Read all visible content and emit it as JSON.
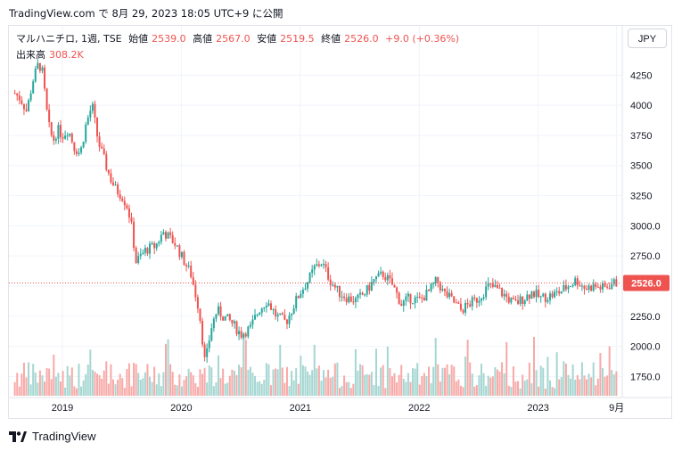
{
  "header": {
    "text": "TradingView.com で 8月 29, 2023 18:05 UTC+9 に公開"
  },
  "legend": {
    "symbol": "マルハニチロ, 1週, TSE",
    "open_label": "始値",
    "open": "2539.0",
    "high_label": "高値",
    "high": "2567.0",
    "low_label": "安値",
    "low": "2519.5",
    "close_label": "終値",
    "close": "2526.0",
    "change": "+9.0 (+0.36%)",
    "volume_label": "出来高",
    "volume": "308.2K"
  },
  "currency_button": "JPY",
  "footer": {
    "brand": "TradingView"
  },
  "colors": {
    "up": "#26a69a",
    "down": "#ef5350",
    "vol_up": "#a5d6d1",
    "vol_down": "#f7a9a7",
    "grid": "#f0f3fa",
    "price_line": "#ef5350"
  },
  "chart_data": {
    "type": "candlestick",
    "x_ticks": [
      "2019",
      "2020",
      "2021",
      "2022",
      "2023",
      "9月"
    ],
    "y_ticks": [
      "4250",
      "4000",
      "3750",
      "3500",
      "3250",
      "3000.0",
      "2750.0",
      "2500.0",
      "2250.0",
      "2000.0",
      "1750.0"
    ],
    "y_tick_values": [
      4250,
      4000,
      3750,
      3500,
      3250,
      3000,
      2750,
      2500,
      2250,
      2000,
      1750
    ],
    "ylim": [
      1590,
      4430
    ],
    "last_price_label": "2526.0",
    "last_price": 2526,
    "series_close": [
      [
        2018.6,
        4100
      ],
      [
        2018.65,
        4050
      ],
      [
        2018.7,
        3950
      ],
      [
        2018.75,
        4200
      ],
      [
        2018.8,
        4350
      ],
      [
        2018.83,
        4280
      ],
      [
        2018.88,
        3850
      ],
      [
        2018.92,
        3700
      ],
      [
        2018.96,
        3800
      ],
      [
        2019.0,
        3750
      ],
      [
        2019.05,
        3800
      ],
      [
        2019.1,
        3650
      ],
      [
        2019.15,
        3600
      ],
      [
        2019.2,
        3850
      ],
      [
        2019.25,
        4000
      ],
      [
        2019.3,
        3700
      ],
      [
        2019.35,
        3550
      ],
      [
        2019.4,
        3400
      ],
      [
        2019.45,
        3300
      ],
      [
        2019.5,
        3250
      ],
      [
        2019.55,
        3150
      ],
      [
        2019.58,
        3000
      ],
      [
        2019.62,
        2700
      ],
      [
        2019.7,
        2800
      ],
      [
        2019.78,
        2830
      ],
      [
        2019.85,
        2950
      ],
      [
        2019.9,
        2900
      ],
      [
        2019.95,
        2850
      ],
      [
        2020.0,
        2750
      ],
      [
        2020.08,
        2600
      ],
      [
        2020.15,
        2300
      ],
      [
        2020.2,
        1850
      ],
      [
        2020.25,
        2150
      ],
      [
        2020.3,
        2300
      ],
      [
        2020.35,
        2250
      ],
      [
        2020.42,
        2200
      ],
      [
        2020.5,
        2100
      ],
      [
        2020.58,
        2150
      ],
      [
        2020.65,
        2300
      ],
      [
        2020.72,
        2380
      ],
      [
        2020.8,
        2250
      ],
      [
        2020.88,
        2200
      ],
      [
        2020.95,
        2350
      ],
      [
        2021.0,
        2450
      ],
      [
        2021.07,
        2550
      ],
      [
        2021.12,
        2650
      ],
      [
        2021.18,
        2700
      ],
      [
        2021.25,
        2550
      ],
      [
        2021.32,
        2450
      ],
      [
        2021.4,
        2400
      ],
      [
        2021.47,
        2380
      ],
      [
        2021.55,
        2450
      ],
      [
        2021.62,
        2550
      ],
      [
        2021.7,
        2600
      ],
      [
        2021.78,
        2500
      ],
      [
        2021.85,
        2350
      ],
      [
        2021.92,
        2400
      ],
      [
        2022.0,
        2380
      ],
      [
        2022.08,
        2450
      ],
      [
        2022.15,
        2550
      ],
      [
        2022.2,
        2450
      ],
      [
        2022.28,
        2380
      ],
      [
        2022.35,
        2300
      ],
      [
        2022.42,
        2350
      ],
      [
        2022.5,
        2400
      ],
      [
        2022.58,
        2500
      ],
      [
        2022.65,
        2480
      ],
      [
        2022.72,
        2420
      ],
      [
        2022.8,
        2350
      ],
      [
        2022.88,
        2400
      ],
      [
        2022.95,
        2450
      ],
      [
        2023.02,
        2400
      ],
      [
        2023.1,
        2420
      ],
      [
        2023.18,
        2450
      ],
      [
        2023.25,
        2500
      ],
      [
        2023.32,
        2550
      ],
      [
        2023.4,
        2480
      ],
      [
        2023.47,
        2500
      ],
      [
        2023.55,
        2480
      ],
      [
        2023.62,
        2520
      ],
      [
        2023.66,
        2526
      ]
    ]
  }
}
